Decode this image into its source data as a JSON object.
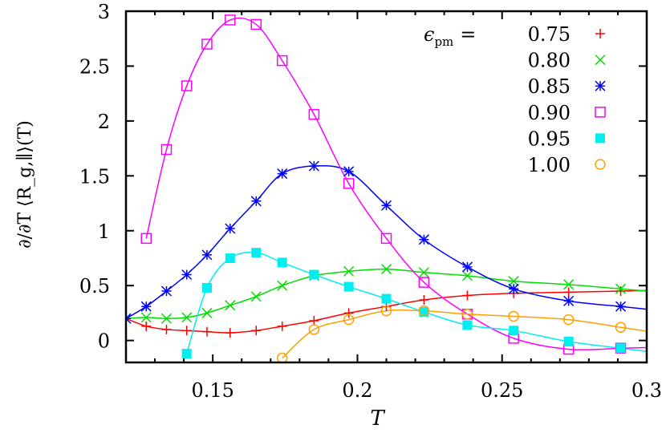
{
  "chart_data": {
    "type": "line",
    "title": "",
    "xlabel": "T",
    "ylabel": "∂/∂T ⟨R_g,∥⟩(T)",
    "xlim": [
      0.12,
      0.3
    ],
    "ylim": [
      -0.2,
      3
    ],
    "xticks": [
      "0.15",
      "0.2",
      "0.25",
      "0.3"
    ],
    "xtick_values": [
      0.15,
      0.2,
      0.25,
      0.3
    ],
    "yticks": [
      "0",
      "0.5",
      "1",
      "1.5",
      "2",
      "2.5",
      "3"
    ],
    "ytick_values": [
      0,
      0.5,
      1,
      1.5,
      2,
      2.5,
      3
    ],
    "grid": false,
    "legend": {
      "placement": "top-right",
      "title": "ϵpm =",
      "title_symbol": "ϵ",
      "title_sub": "pm",
      "title_eq": "="
    },
    "x": [
      0.12,
      0.127,
      0.134,
      0.141,
      0.148,
      0.156,
      0.165,
      0.174,
      0.185,
      0.197,
      0.21,
      0.223,
      0.238,
      0.254,
      0.273,
      0.291
    ],
    "series": [
      {
        "name": "0.75",
        "color": "#ff0000",
        "marker": "plus",
        "values": [
          0.2,
          0.13,
          0.1,
          0.09,
          0.08,
          0.07,
          0.09,
          0.13,
          0.18,
          0.25,
          0.31,
          0.37,
          0.41,
          0.43,
          0.44,
          0.45
        ]
      },
      {
        "name": "0.80",
        "color": "#00dd00",
        "marker": "cross",
        "values": [
          0.2,
          0.21,
          0.2,
          0.21,
          0.25,
          0.32,
          0.4,
          0.5,
          0.59,
          0.63,
          0.65,
          0.62,
          0.59,
          0.54,
          0.51,
          0.47
        ]
      },
      {
        "name": "0.85",
        "color": "#0000ff",
        "marker": "star",
        "values": [
          0.2,
          0.31,
          0.45,
          0.6,
          0.78,
          1.02,
          1.27,
          1.52,
          1.59,
          1.54,
          1.23,
          0.92,
          0.67,
          0.47,
          0.36,
          0.31
        ]
      },
      {
        "name": "0.90",
        "color": "#ff00ff",
        "marker": "open-square",
        "values": [
          null,
          0.93,
          1.74,
          2.32,
          2.7,
          2.92,
          2.88,
          2.55,
          2.06,
          1.43,
          0.93,
          0.53,
          0.24,
          0.02,
          -0.08,
          -0.07
        ]
      },
      {
        "name": "0.95",
        "color": "#00eeee",
        "marker": "filled-square",
        "values": [
          null,
          null,
          null,
          -0.12,
          0.48,
          0.75,
          0.8,
          0.71,
          0.6,
          0.49,
          0.38,
          0.26,
          0.14,
          0.09,
          -0.01,
          -0.07
        ]
      },
      {
        "name": "1.00",
        "color": "#ffa000",
        "marker": "open-circle",
        "values": [
          null,
          null,
          null,
          null,
          null,
          null,
          null,
          -0.16,
          0.1,
          0.19,
          0.27,
          0.27,
          0.24,
          0.22,
          0.19,
          0.12
        ]
      }
    ]
  }
}
